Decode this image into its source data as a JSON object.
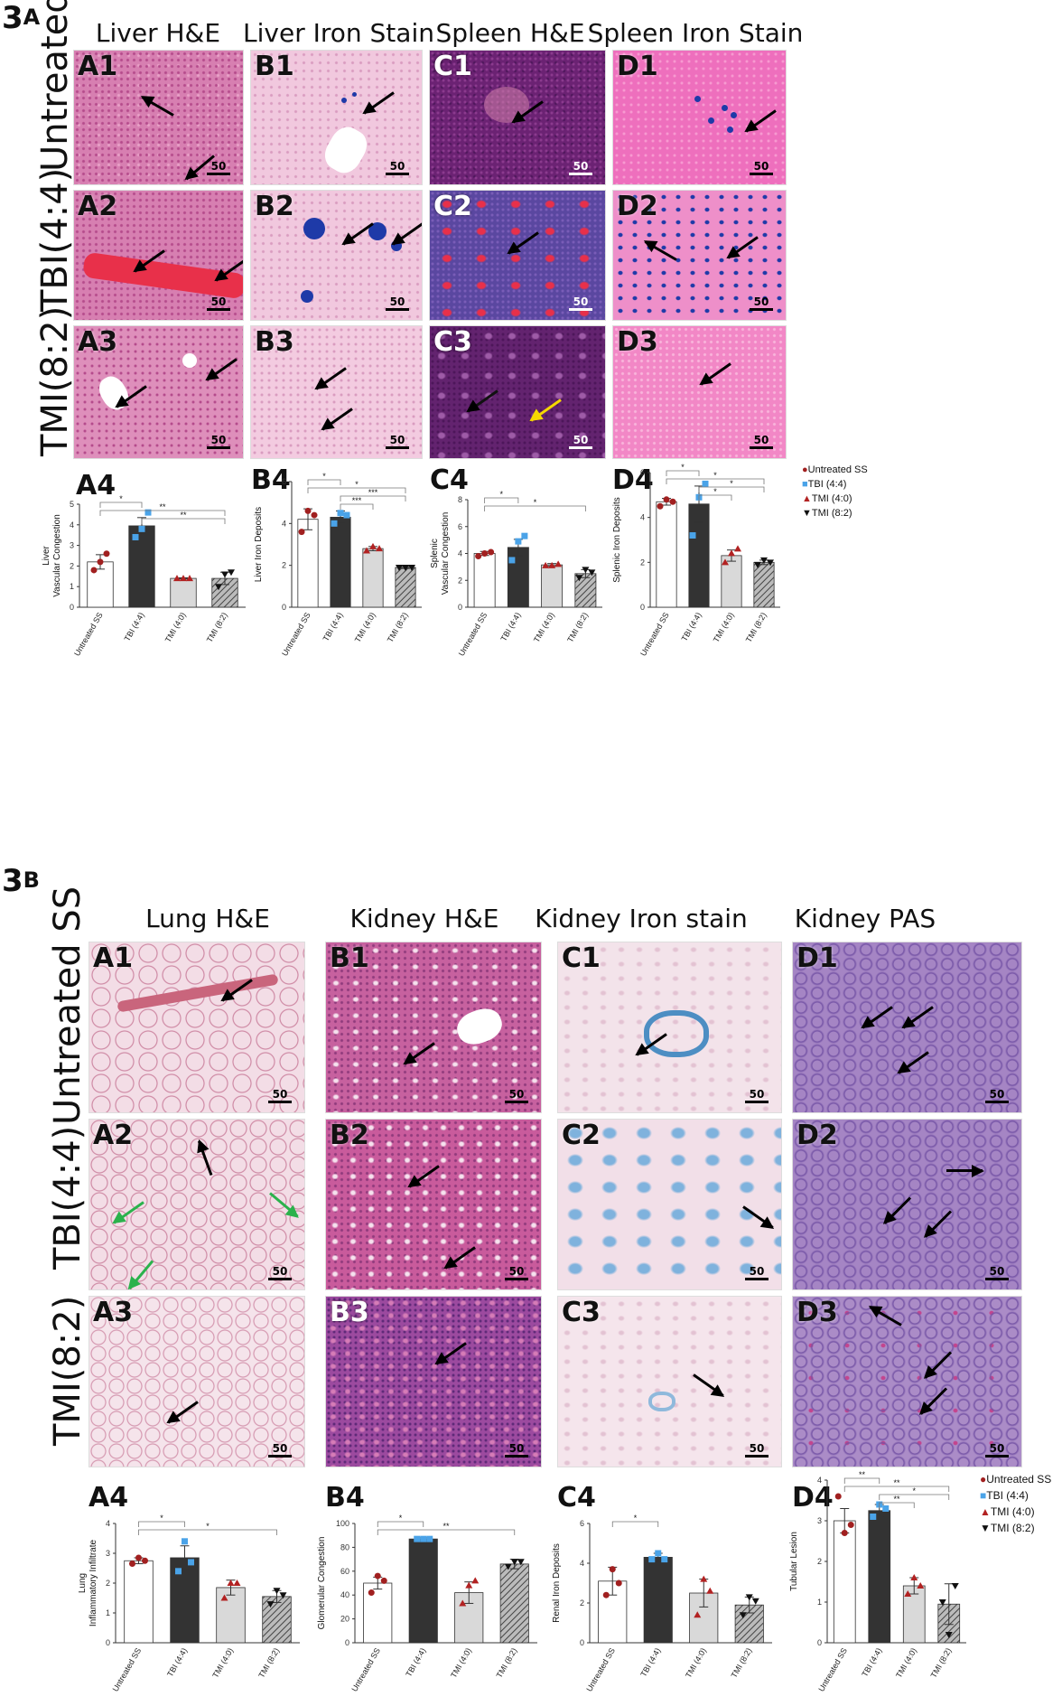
{
  "figure_3a": {
    "label_num": "3",
    "label_letter": "A",
    "columns": [
      "Liver H&E",
      "Liver Iron Stain",
      "Spleen H&E",
      "Spleen Iron Stain"
    ],
    "rows": [
      "Untreated SS",
      "TBI(4:4)",
      "TMI(8:2)"
    ],
    "tile_labels": [
      [
        "A1",
        "B1",
        "C1",
        "D1"
      ],
      [
        "A2",
        "B2",
        "C2",
        "D2"
      ],
      [
        "A3",
        "B3",
        "C3",
        "D3"
      ]
    ],
    "scale_text": "50",
    "tile_colors": {
      "liver_he": "#d77fb1",
      "liver_iron": "#f1c8de",
      "spleen_he": "#6b2273",
      "spleen_iron": "#ee6fbd",
      "spleen_tbi_he": "#5a47a0",
      "blood": "#e8304a",
      "iron_blue": "#1e3aa8"
    },
    "chart_letters": [
      "A4",
      "B4",
      "C4",
      "D4"
    ]
  },
  "figure_3b": {
    "label_num": "3",
    "label_letter": "B",
    "columns": [
      "Lung H&E",
      "Kidney H&E",
      "Kidney Iron stain",
      "Kidney PAS"
    ],
    "rows": [
      "Untreated SS",
      "TBI(4:4)",
      "TMI(8:2)"
    ],
    "tile_labels": [
      [
        "A1",
        "B1",
        "C1",
        "D1"
      ],
      [
        "A2",
        "B2",
        "C2",
        "D2"
      ],
      [
        "A3",
        "B3",
        "C3",
        "D3"
      ]
    ],
    "scale_text": "50",
    "tile_colors": {
      "lung_he": "#f3dde6",
      "kidney_he": "#c7619f",
      "kidney_he_tmi": "#9c4a9f",
      "kidney_iron": "#f3e3ea",
      "kidney_pas": "#a585c4",
      "iron_blue": "#4d8ec3"
    },
    "chart_letters": [
      "A4",
      "B4",
      "C4",
      "D4"
    ]
  },
  "legend": {
    "entries": [
      {
        "label": "Untreated SS",
        "marker": "circle",
        "color": "#a12020"
      },
      {
        "label": "TBI (4:4)",
        "marker": "square",
        "color": "#4aa3e8"
      },
      {
        "label": "TMI (4:0)",
        "marker": "triangle-up",
        "color": "#b22222"
      },
      {
        "label": "TMI (8:2)",
        "marker": "triangle-down",
        "color": "#111111"
      }
    ]
  },
  "chart_data": [
    {
      "id": "A4",
      "type": "bar",
      "panel": "3A",
      "ylabel": "Liver\nVascular Congestion",
      "categories": [
        "Untreated SS",
        "TBI (4:4)",
        "TMI (4:0)",
        "TMI (8:2)"
      ],
      "values": [
        2.2,
        3.95,
        1.4,
        1.4
      ],
      "errors": [
        0.35,
        0.4,
        0.03,
        0.3
      ],
      "points": [
        [
          1.8,
          2.2,
          2.6
        ],
        [
          3.4,
          3.8,
          4.6
        ],
        [
          1.4,
          1.4,
          1.4
        ],
        [
          1.0,
          1.6,
          1.7
        ]
      ],
      "ylim": [
        0,
        5
      ],
      "significance": [
        "*",
        "**",
        "**"
      ]
    },
    {
      "id": "B4",
      "type": "bar",
      "panel": "3A",
      "ylabel": "Liver Iron Deposits",
      "categories": [
        "Untreated SS",
        "TBI (4:4)",
        "TMI (4:0)",
        "TMI (8:2)"
      ],
      "values": [
        4.2,
        4.3,
        2.8,
        1.9
      ],
      "errors": [
        0.5,
        0.3,
        0.1,
        0.05
      ],
      "points": [
        [
          3.6,
          4.6,
          4.4
        ],
        [
          4.0,
          4.5,
          4.4
        ],
        [
          2.7,
          2.9,
          2.8
        ],
        [
          1.9,
          1.9,
          1.9
        ]
      ],
      "ylim": [
        0,
        6
      ],
      "significance": [
        "*",
        "*",
        "***",
        "***"
      ]
    },
    {
      "id": "C4",
      "type": "bar",
      "panel": "3A",
      "ylabel": "Splenic\nVascular Congestion",
      "categories": [
        "Untreated SS",
        "TBI (4:4)",
        "TMI (4:0)",
        "TMI (8:2)"
      ],
      "values": [
        4.0,
        4.45,
        3.15,
        2.5
      ],
      "errors": [
        0.15,
        0.6,
        0.1,
        0.3
      ],
      "points": [
        [
          3.8,
          4.0,
          4.1
        ],
        [
          3.5,
          4.9,
          5.3
        ],
        [
          3.1,
          3.1,
          3.2
        ],
        [
          2.2,
          2.8,
          2.6
        ]
      ],
      "ylim": [
        0,
        8
      ],
      "significance": [
        "*",
        "*"
      ]
    },
    {
      "id": "D4",
      "type": "bar",
      "panel": "3A",
      "ylabel": "Splenic Iron Deposits",
      "categories": [
        "Untreated SS",
        "TBI (4:4)",
        "TMI (4:0)",
        "TMI (8:2)"
      ],
      "values": [
        4.7,
        4.6,
        2.3,
        2.0
      ],
      "errors": [
        0.15,
        0.8,
        0.25,
        0.1
      ],
      "points": [
        [
          4.5,
          4.8,
          4.7
        ],
        [
          3.2,
          4.9,
          5.5
        ],
        [
          2.0,
          2.4,
          2.6
        ],
        [
          1.9,
          2.1,
          2.0
        ]
      ],
      "ylim": [
        0,
        6
      ],
      "significance": [
        "*",
        "*",
        "*",
        "*"
      ]
    },
    {
      "id": "A4",
      "type": "bar",
      "panel": "3B",
      "ylabel": "Lung\nInflammatory Infiltrate",
      "categories": [
        "Untreated SS",
        "TBI (4:4)",
        "TMI (4:0)",
        "TMI (8:2)"
      ],
      "values": [
        2.75,
        2.85,
        1.85,
        1.55
      ],
      "errors": [
        0.1,
        0.4,
        0.25,
        0.2
      ],
      "points": [
        [
          2.65,
          2.85,
          2.75
        ],
        [
          2.4,
          3.4,
          2.7
        ],
        [
          1.5,
          2.0,
          2.0
        ],
        [
          1.3,
          1.75,
          1.6
        ]
      ],
      "ylim": [
        0,
        4
      ],
      "significance": [
        "*",
        "*"
      ]
    },
    {
      "id": "B4",
      "type": "bar",
      "panel": "3B",
      "ylabel": "Glomerular Congestion",
      "categories": [
        "Untreated SS",
        "TBI (4:4)",
        "TMI (4:0)",
        "TMI (8:2)"
      ],
      "values": [
        50,
        87,
        42,
        66
      ],
      "errors": [
        5,
        1,
        9,
        4
      ],
      "points": [
        [
          42,
          56,
          52
        ],
        [
          87,
          87,
          87
        ],
        [
          33,
          48,
          52
        ],
        [
          64,
          68,
          68
        ]
      ],
      "ylim": [
        0,
        100
      ],
      "significance": [
        "*",
        "**"
      ]
    },
    {
      "id": "C4",
      "type": "bar",
      "panel": "3B",
      "ylabel": "Renal Iron Deposits",
      "categories": [
        "Untreated SS",
        "TBI (4:4)",
        "TMI (4:0)",
        "TMI (8:2)"
      ],
      "values": [
        3.1,
        4.3,
        2.5,
        1.9
      ],
      "errors": [
        0.7,
        0.2,
        0.7,
        0.4
      ],
      "points": [
        [
          2.4,
          3.7,
          3.0
        ],
        [
          4.2,
          4.5,
          4.2
        ],
        [
          1.4,
          3.2,
          2.6
        ],
        [
          1.4,
          2.3,
          2.1
        ]
      ],
      "ylim": [
        0,
        6
      ],
      "significance": [
        "*"
      ]
    },
    {
      "id": "D4",
      "type": "bar",
      "panel": "3B",
      "ylabel": "Tubular Lesion",
      "categories": [
        "Untreated SS",
        "TBI (4:4)",
        "TMI (4:0)",
        "TMI (8:2)"
      ],
      "values": [
        3.0,
        3.25,
        1.4,
        0.95
      ],
      "errors": [
        0.3,
        0.15,
        0.2,
        0.5
      ],
      "points": [
        [
          3.6,
          2.7,
          2.9
        ],
        [
          3.1,
          3.4,
          3.3
        ],
        [
          1.2,
          1.6,
          1.4
        ],
        [
          1.0,
          0.2,
          1.4
        ]
      ],
      "ylim": [
        0,
        4
      ],
      "significance": [
        "**",
        "**",
        "*",
        "**"
      ]
    }
  ]
}
